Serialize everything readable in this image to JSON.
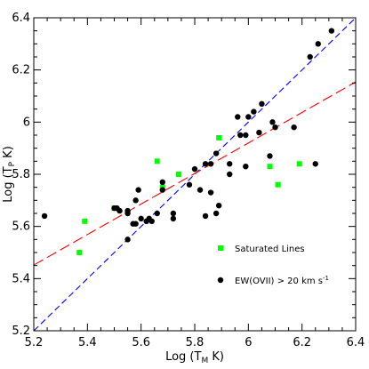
{
  "chart_data": {
    "type": "scatter",
    "xlabel": {
      "main": "Log (T",
      "sub": "M",
      "tail": " K)"
    },
    "ylabel": {
      "main": "Log (T",
      "sub": "P",
      "tail": " K)"
    },
    "xlim": [
      5.2,
      6.4
    ],
    "ylim": [
      5.2,
      6.4
    ],
    "xticks": [
      "5.2",
      "5.4",
      "5.6",
      "5.8",
      "6",
      "6.2",
      "6.4"
    ],
    "yticks": [
      "5.2",
      "5.4",
      "5.6",
      "5.8",
      "6",
      "6.2",
      "6.4"
    ],
    "grid": false,
    "legend_position": "bottom-right",
    "series": [
      {
        "name": "Saturated Lines",
        "marker": "square",
        "color": "#00ff00",
        "points": [
          [
            5.37,
            5.5
          ],
          [
            5.39,
            5.62
          ],
          [
            5.5,
            5.67
          ],
          [
            5.66,
            5.85
          ],
          [
            5.68,
            5.75
          ],
          [
            5.74,
            5.8
          ],
          [
            5.89,
            5.94
          ],
          [
            6.08,
            5.83
          ],
          [
            6.11,
            5.76
          ],
          [
            6.19,
            5.84
          ]
        ]
      },
      {
        "name": "EW(OVII) > 20 km s",
        "name_sup": "-1",
        "marker": "circle",
        "color": "#000000",
        "points": [
          [
            5.24,
            5.64
          ],
          [
            5.5,
            5.67
          ],
          [
            5.51,
            5.67
          ],
          [
            5.52,
            5.66
          ],
          [
            5.55,
            5.65
          ],
          [
            5.55,
            5.66
          ],
          [
            5.55,
            5.55
          ],
          [
            5.57,
            5.61
          ],
          [
            5.58,
            5.61
          ],
          [
            5.58,
            5.7
          ],
          [
            5.59,
            5.74
          ],
          [
            5.6,
            5.63
          ],
          [
            5.62,
            5.62
          ],
          [
            5.63,
            5.63
          ],
          [
            5.64,
            5.62
          ],
          [
            5.66,
            5.65
          ],
          [
            5.68,
            5.77
          ],
          [
            5.68,
            5.74
          ],
          [
            5.72,
            5.63
          ],
          [
            5.72,
            5.65
          ],
          [
            5.78,
            5.76
          ],
          [
            5.8,
            5.82
          ],
          [
            5.82,
            5.74
          ],
          [
            5.84,
            5.84
          ],
          [
            5.84,
            5.64
          ],
          [
            5.86,
            5.73
          ],
          [
            5.86,
            5.84
          ],
          [
            5.88,
            5.88
          ],
          [
            5.88,
            5.65
          ],
          [
            5.89,
            5.68
          ],
          [
            5.93,
            5.8
          ],
          [
            5.93,
            5.84
          ],
          [
            5.96,
            6.02
          ],
          [
            5.97,
            5.95
          ],
          [
            5.99,
            5.95
          ],
          [
            5.99,
            5.83
          ],
          [
            6.0,
            6.02
          ],
          [
            6.02,
            6.04
          ],
          [
            6.04,
            5.96
          ],
          [
            6.05,
            6.07
          ],
          [
            6.08,
            5.87
          ],
          [
            6.09,
            6.0
          ],
          [
            6.1,
            5.98
          ],
          [
            6.17,
            5.98
          ],
          [
            6.23,
            6.25
          ],
          [
            6.25,
            5.84
          ],
          [
            6.26,
            6.3
          ],
          [
            6.31,
            6.35
          ]
        ]
      }
    ],
    "fit_lines": [
      {
        "style": "dashed",
        "color": "#0000ff",
        "x": [
          5.2,
          6.4
        ],
        "y": [
          5.2,
          6.4
        ]
      },
      {
        "style": "dashed",
        "color": "#ff0000",
        "x": [
          5.2,
          6.4
        ],
        "y": [
          5.452,
          6.154
        ]
      }
    ]
  }
}
